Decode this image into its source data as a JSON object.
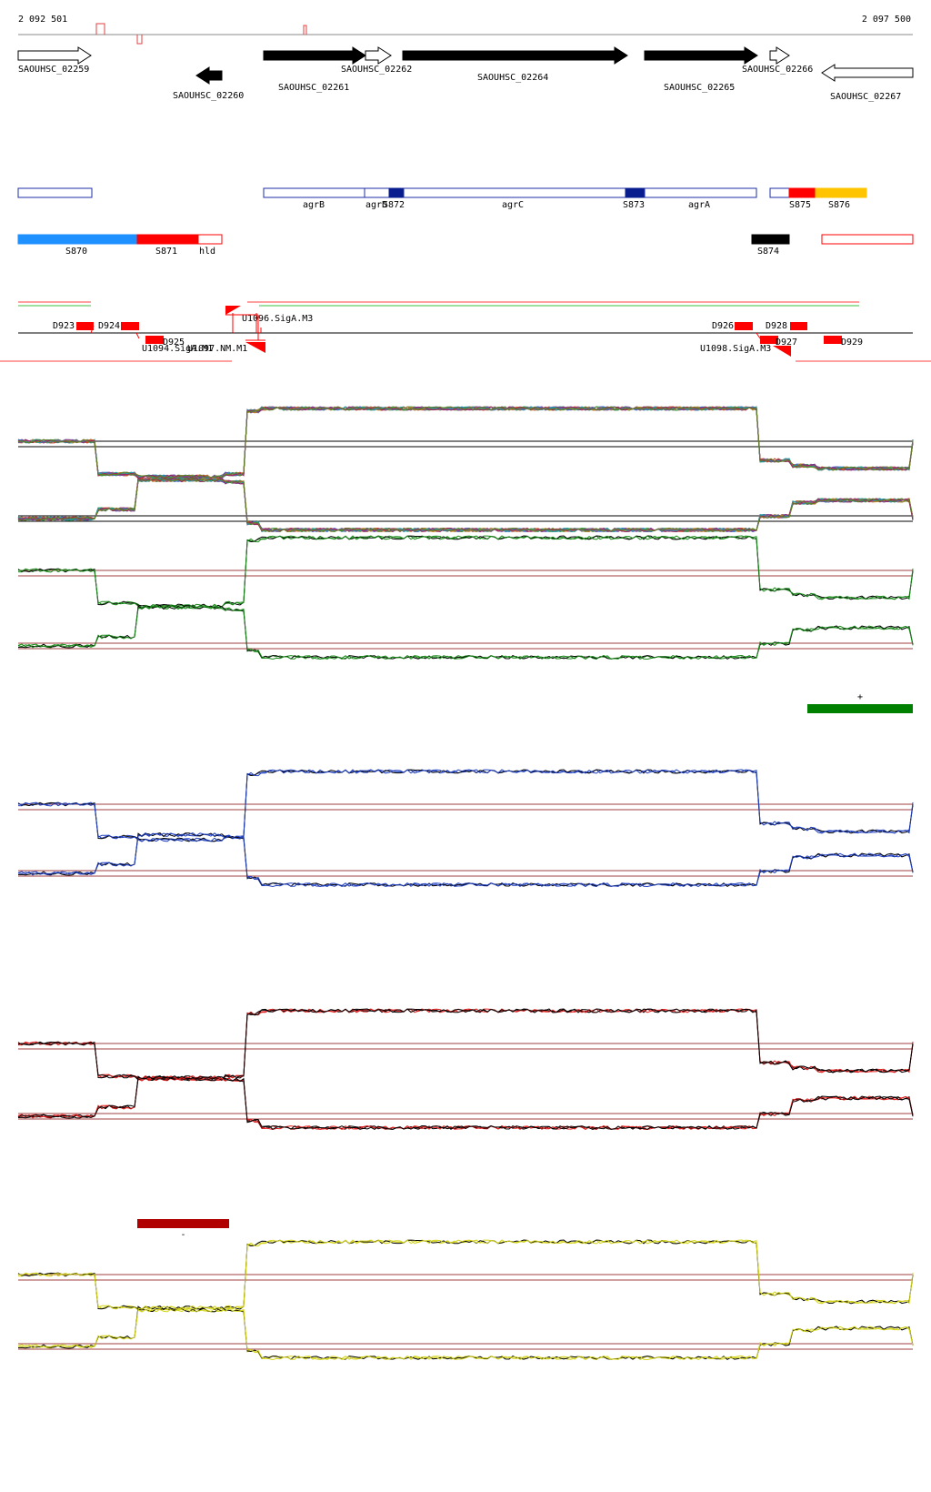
{
  "ruler": {
    "start": "2 092 501",
    "end": "2 097 500"
  },
  "genes": [
    {
      "label": "SAOUHSC_02259",
      "strand": "+",
      "fill": "#ffffff"
    },
    {
      "label": "SAOUHSC_02260",
      "strand": "-",
      "fill": "#000000"
    },
    {
      "label": "SAOUHSC_02261",
      "strand": "+",
      "fill": "#000000"
    },
    {
      "label": "SAOUHSC_02262",
      "strand": "+",
      "fill": "#ffffff"
    },
    {
      "label": "SAOUHSC_02264",
      "strand": "+",
      "fill": "#000000"
    },
    {
      "label": "SAOUHSC_02265",
      "strand": "+",
      "fill": "#000000"
    },
    {
      "label": "SAOUHSC_02266",
      "strand": "+",
      "fill": "#ffffff"
    },
    {
      "label": "SAOUHSC_02267",
      "strand": "-",
      "fill": "#ffffff"
    }
  ],
  "transcripts_plus": [
    {
      "label": "agrB",
      "fill": "#ffffff",
      "stroke": "#1c2fa8"
    },
    {
      "label": "agrD",
      "fill": "#ffffff",
      "stroke": "#1c2fa8"
    },
    {
      "label": "S872",
      "fill": "#0a1d8f",
      "stroke": "#0a1d8f"
    },
    {
      "label": "agrC",
      "fill": "#ffffff",
      "stroke": "#1c2fa8"
    },
    {
      "label": "S873",
      "fill": "#0a1d8f",
      "stroke": "#0a1d8f"
    },
    {
      "label": "agrA",
      "fill": "#ffffff",
      "stroke": "#1c2fa8"
    },
    {
      "label": "S875",
      "fill": "#ff0000",
      "stroke": "#ff0000"
    },
    {
      "label": "S876",
      "fill": "#ffc400",
      "stroke": "#ffc400"
    }
  ],
  "transcripts_minus": [
    {
      "label": "S870",
      "fill": "#1e90ff"
    },
    {
      "label": "S871",
      "fill": "#ff0000"
    },
    {
      "label": "hld",
      "fill": "#ffffff"
    },
    {
      "label": "S874",
      "fill": "#000000"
    }
  ],
  "features": [
    {
      "label": "D923"
    },
    {
      "label": "D924"
    },
    {
      "label": "D925"
    },
    {
      "label": "U1096.SigA.M3"
    },
    {
      "label": "U1094.SigA.M1"
    },
    {
      "label": "U1097.NM.M1"
    },
    {
      "label": "D926"
    },
    {
      "label": "D928"
    },
    {
      "label": "D927"
    },
    {
      "label": "D929"
    },
    {
      "label": "U1098.SigA.M3"
    }
  ],
  "condition_markers": [
    {
      "label": "+",
      "color": "#008000"
    },
    {
      "label": "-",
      "color": "#b00000"
    }
  ],
  "track_colors": {
    "green": "#1a8a1a",
    "blue": "#1f3fbf",
    "red": "#e02020",
    "yellow": "#d4d41a",
    "threshold": "#a04040"
  }
}
